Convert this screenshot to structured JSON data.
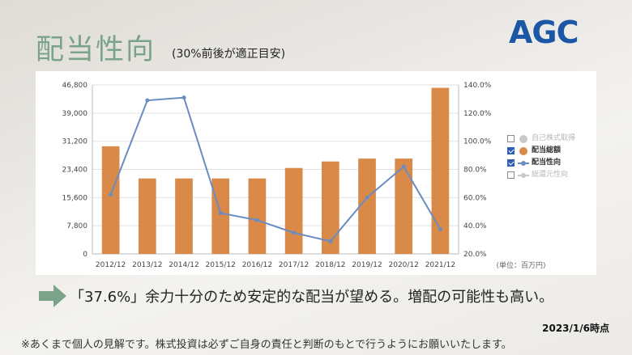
{
  "header": {
    "title": "配当性向",
    "subtitle": "(30%前後が適正目安)",
    "logo_text": "AGC"
  },
  "chart_data": {
    "type": "bar+line",
    "categories": [
      "2012/12",
      "2013/12",
      "2014/12",
      "2015/12",
      "2016/12",
      "2017/12",
      "2018/12",
      "2019/12",
      "2020/12",
      "2021/12"
    ],
    "series": [
      {
        "name": "配当総額",
        "type": "bar",
        "axis": "left",
        "color": "#d98a48",
        "values": [
          29800,
          20900,
          20900,
          20900,
          20900,
          23800,
          25600,
          26400,
          26400,
          46000
        ]
      },
      {
        "name": "配当性向",
        "type": "line",
        "axis": "right",
        "color": "#6b8cc3",
        "values": [
          62.0,
          129.0,
          131.0,
          49.0,
          44.0,
          35.0,
          29.0,
          60.0,
          82.0,
          37.6
        ]
      }
    ],
    "y_left": {
      "min": 0,
      "max": 46800,
      "ticks": [
        "0",
        "7,800",
        "15,600",
        "23,400",
        "31,200",
        "39,000",
        "46,800"
      ]
    },
    "y_right": {
      "min": 20,
      "max": 140,
      "ticks": [
        "20.0%",
        "40.0%",
        "60.0%",
        "80.0%",
        "100.0%",
        "120.0%",
        "140.0%"
      ]
    },
    "unit_note": "(単位：百万円)",
    "grid": true,
    "legend_position": "right",
    "legend": [
      {
        "label": "自己株式取得",
        "checked": false,
        "symbol": "dot",
        "color": "#c8c8c8"
      },
      {
        "label": "配当総額",
        "checked": true,
        "symbol": "dot",
        "color": "#d98a48"
      },
      {
        "label": "配当性向",
        "checked": true,
        "symbol": "line",
        "color": "#6b8cc3"
      },
      {
        "label": "総還元性向",
        "checked": false,
        "symbol": "line",
        "color": "#c8c8c8"
      }
    ]
  },
  "footer": {
    "message": "「37.6%」余力十分のため安定的な配当が望める。増配の可能性も高い。",
    "date": "2023/1/6時点",
    "disclaimer": "※あくまで個人の見解です。株式投資は必ずご自身の責任と判断のもとで行うようにお願いいたします。"
  }
}
